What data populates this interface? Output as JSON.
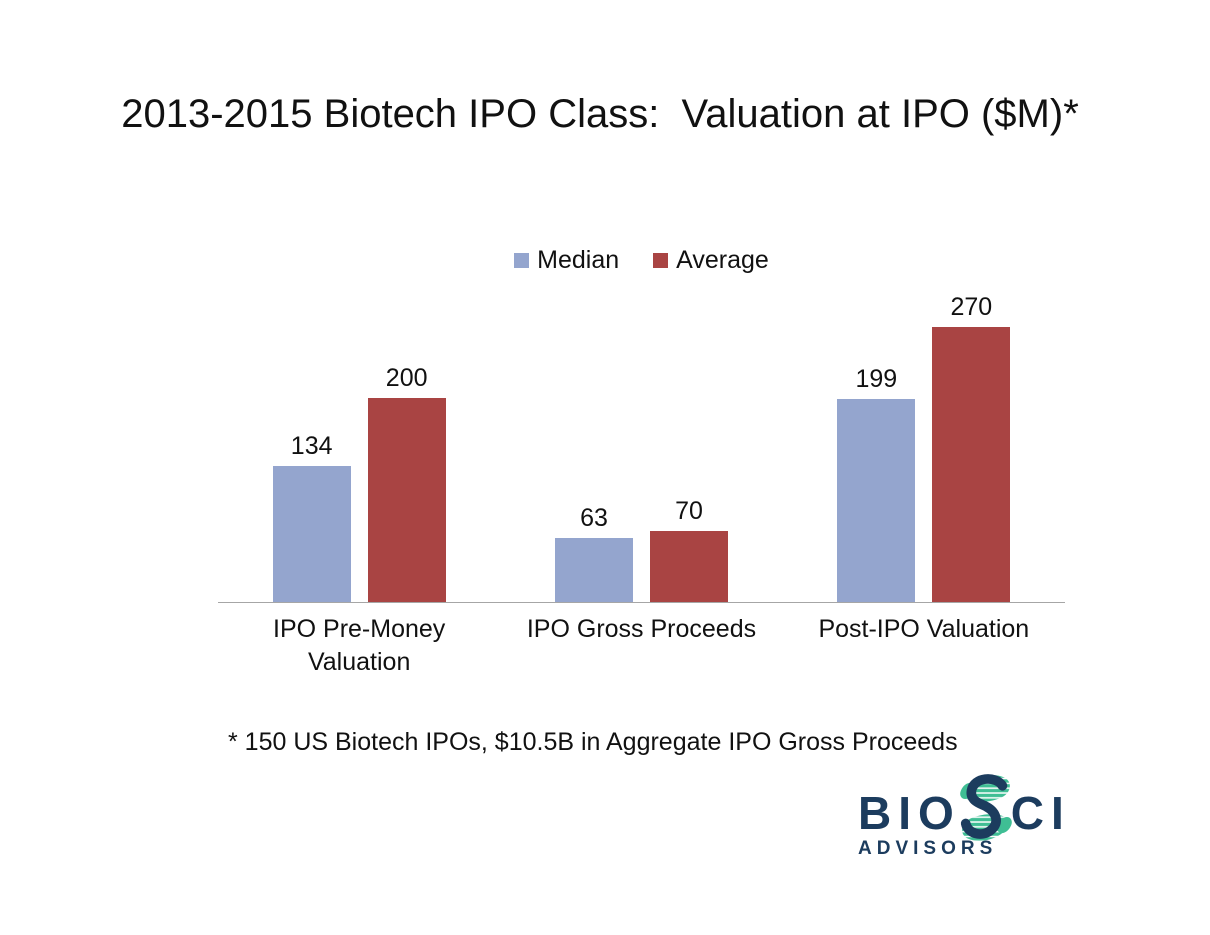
{
  "chart_data": {
    "type": "bar",
    "title": "2013-2015 Biotech IPO Class:  Valuation at IPO ($M)*",
    "categories": [
      "IPO Pre-Money Valuation",
      "IPO Gross Proceeds",
      "Post-IPO Valuation"
    ],
    "series": [
      {
        "name": "Median",
        "color": "#94A5CE",
        "values": [
          134,
          63,
          199
        ]
      },
      {
        "name": "Average",
        "color": "#A94443",
        "values": [
          200,
          70,
          270
        ]
      }
    ],
    "ylim": [
      0,
      280
    ],
    "data_labels": true,
    "grid": false,
    "legend_position": "top-center",
    "axis_line_color": "#A6A6A6"
  },
  "footnote": "* 150 US Biotech IPOs, $10.5B in Aggregate IPO Gross Proceeds",
  "logo": {
    "text_before_s": "BIO",
    "text_after_s": "CI",
    "subtext": "ADVISORS",
    "icon": "dna-helix-s-icon",
    "navy": "#1C3C5E",
    "green": "#3FBE94"
  }
}
